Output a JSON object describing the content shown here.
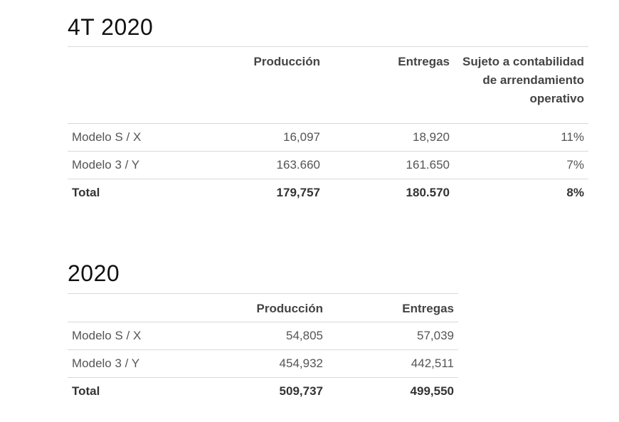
{
  "q4": {
    "title": "4T 2020",
    "headers": [
      "",
      "Producción",
      "Entregas",
      "Sujeto a contabilidad de arrendamiento operativo"
    ],
    "rows": [
      {
        "model": "Modelo S / X",
        "production": "16,097",
        "deliveries": "18,920",
        "lease": "11%"
      },
      {
        "model": "Modelo 3 / Y",
        "production": "163.660",
        "deliveries": "161.650",
        "lease": "7%"
      }
    ],
    "total": {
      "model": "Total",
      "production": "179,757",
      "deliveries": "180.570",
      "lease": "8%"
    }
  },
  "year": {
    "title": "2020",
    "headers": [
      "",
      "Producción",
      "Entregas"
    ],
    "rows": [
      {
        "model": "Modelo S / X",
        "production": "54,805",
        "deliveries": "57,039"
      },
      {
        "model": "Modelo 3 / Y",
        "production": "454,932",
        "deliveries": "442,511"
      }
    ],
    "total": {
      "model": "Total",
      "production": "509,737",
      "deliveries": "499,550"
    }
  }
}
